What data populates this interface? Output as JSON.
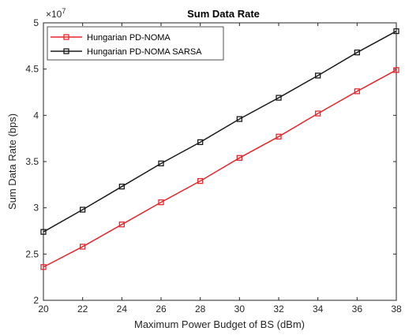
{
  "chart_data": {
    "type": "line",
    "title": "Sum Data Rate",
    "xlabel": "Maximum Power Budget of BS (dBm)",
    "ylabel": "Sum Data Rate (bps)",
    "y_exponent_label": "×10",
    "y_exponent_power": "7",
    "x": [
      20,
      22,
      24,
      26,
      28,
      30,
      32,
      34,
      36,
      38
    ],
    "xlim": [
      20,
      38
    ],
    "ylim": [
      2,
      5
    ],
    "x_ticks": [
      "20",
      "22",
      "24",
      "26",
      "28",
      "30",
      "32",
      "34",
      "36",
      "38"
    ],
    "y_tick_values": [
      2,
      2.5,
      3,
      3.5,
      4,
      4.5,
      5
    ],
    "y_ticks": [
      "2",
      "2.5",
      "3",
      "3.5",
      "4",
      "4.5",
      "5"
    ],
    "grid": false,
    "legend_position": "top-left",
    "marker": "square",
    "series": [
      {
        "name": "Hungarian PD-NOMA",
        "color": "#e8262b",
        "values": [
          2.36,
          2.58,
          2.82,
          3.06,
          3.29,
          3.54,
          3.77,
          4.02,
          4.26,
          4.49
        ]
      },
      {
        "name": "Hungarian PD-NOMA SARSA",
        "color": "#1a1a1a",
        "values": [
          2.74,
          2.98,
          3.23,
          3.48,
          3.71,
          3.96,
          4.19,
          4.43,
          4.68,
          4.91
        ]
      }
    ]
  }
}
